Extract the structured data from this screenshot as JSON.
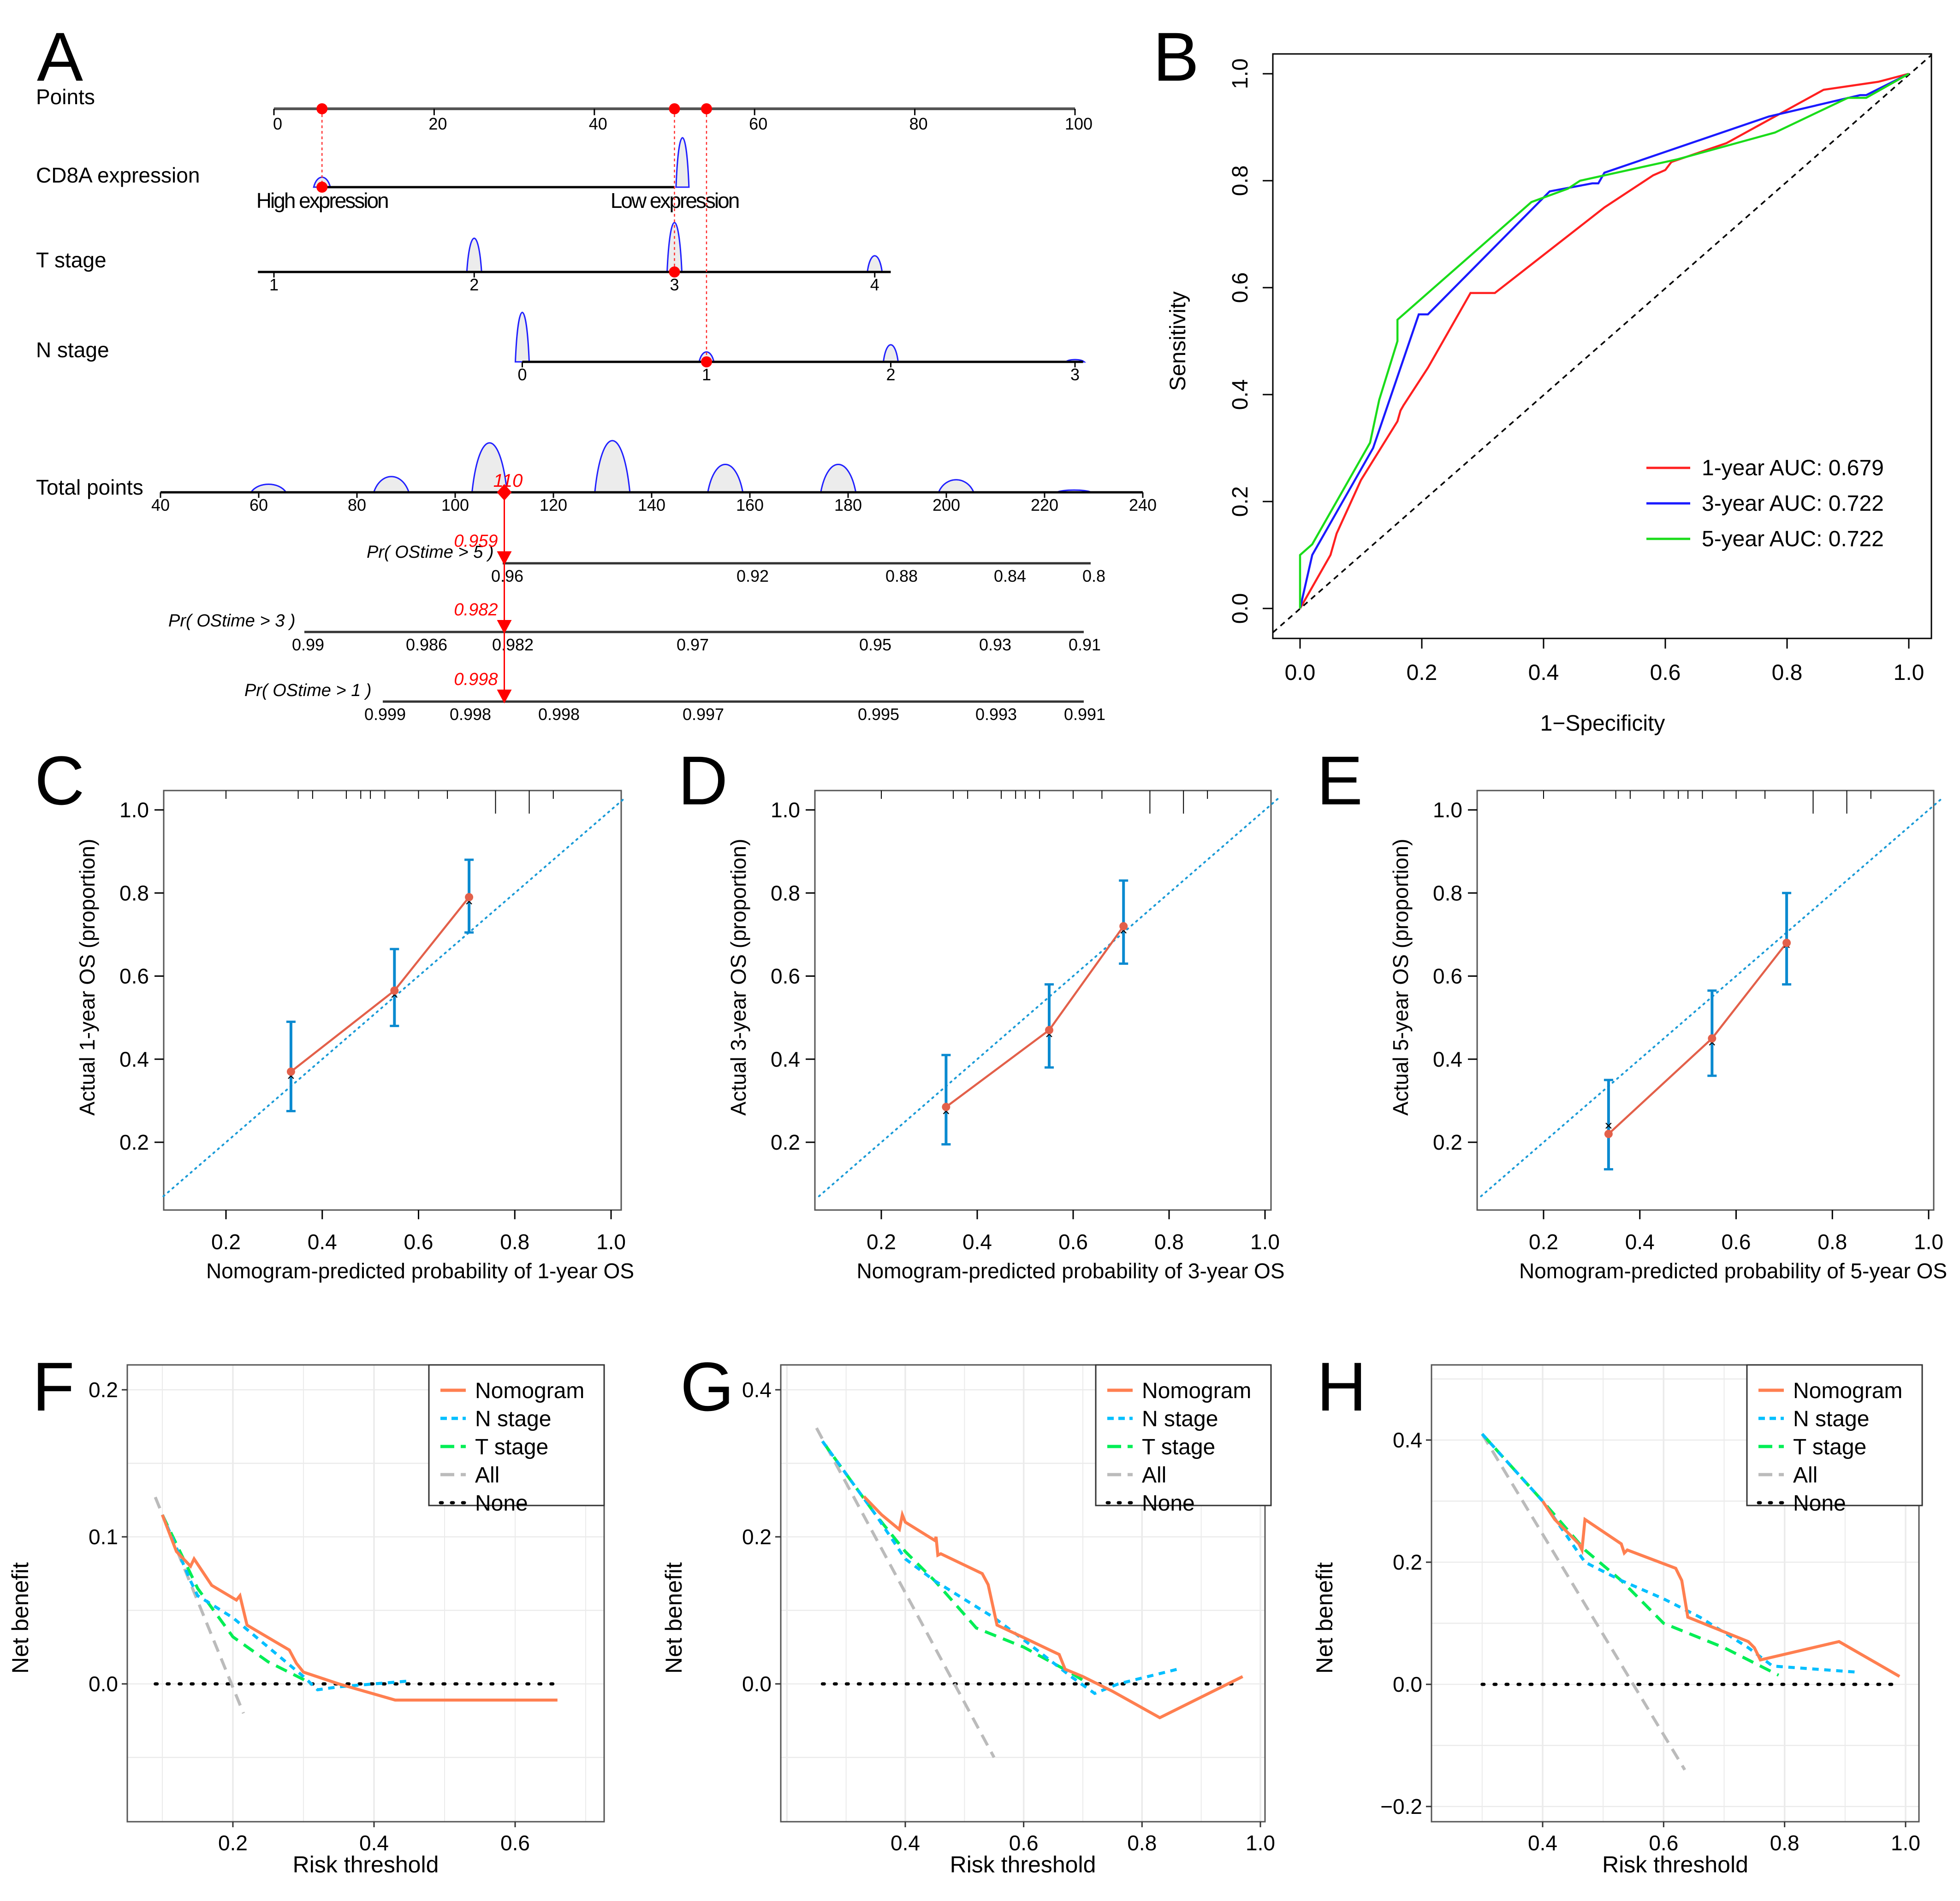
{
  "chart_data": [
    {
      "panel": "A",
      "type": "nomogram",
      "rows": [
        {
          "label": "Points",
          "ticks": [
            "0",
            "20",
            "40",
            "60",
            "80",
            "100"
          ],
          "tick_values": [
            0,
            20,
            40,
            60,
            80,
            100
          ]
        },
        {
          "label": "CD8A expression",
          "levels": [
            "High expression",
            "Low expression"
          ],
          "level_points": [
            6,
            50
          ]
        },
        {
          "label": "T stage",
          "levels": [
            "1",
            "2",
            "3",
            "4"
          ],
          "level_points": [
            0,
            25,
            50,
            75
          ]
        },
        {
          "label": "N stage",
          "levels": [
            "0",
            "1",
            "2",
            "3"
          ],
          "level_points": [
            31,
            54,
            77,
            100
          ]
        },
        {
          "label": "Total points",
          "ticks": [
            "40",
            "60",
            "80",
            "100",
            "120",
            "140",
            "160",
            "180",
            "200",
            "220",
            "240"
          ],
          "tick_values": [
            40,
            60,
            80,
            100,
            120,
            140,
            160,
            180,
            200,
            220,
            240
          ],
          "highlight": "110"
        },
        {
          "label": "Pr( OStime > 5 )",
          "ticks": [
            "0.96",
            "0.92",
            "0.88",
            "0.84",
            "0.8"
          ],
          "highlight": "0.959"
        },
        {
          "label": "Pr( OStime > 3 )",
          "ticks": [
            "0.99",
            "0.986",
            "0.982",
            "0.97",
            "0.95",
            "0.93",
            "0.91"
          ],
          "highlight": "0.982"
        },
        {
          "label": "Pr( OStime > 1 )",
          "ticks": [
            "0.999",
            "0.998",
            "0.998",
            "0.997",
            "0.995",
            "0.993",
            "0.991"
          ],
          "highlight": "0.998"
        }
      ],
      "selected_points": {
        "CD8A expression": 6,
        "T stage": 50,
        "N stage": 54,
        "total": 110
      },
      "total_points_distribution_peaks": [
        62,
        87,
        107,
        132,
        155,
        178,
        202,
        226
      ]
    },
    {
      "panel": "B",
      "type": "line",
      "title": "",
      "xlabel": "1−Specificity",
      "ylabel": "Sensitivity",
      "xlim": [
        0,
        1
      ],
      "ylim": [
        0,
        1
      ],
      "xticks": [
        "0.0",
        "0.2",
        "0.4",
        "0.6",
        "0.8",
        "1.0"
      ],
      "yticks": [
        "0.0",
        "0.2",
        "0.4",
        "0.6",
        "0.8",
        "1.0"
      ],
      "legend_position": "bottom-right",
      "series": [
        {
          "name": "1-year AUC: 0.679",
          "color": "#ff2020",
          "x": [
            0,
            0.05,
            0.06,
            0.1,
            0.16,
            0.165,
            0.17,
            0.21,
            0.28,
            0.32,
            0.5,
            0.58,
            0.6,
            0.61,
            0.7,
            0.86,
            0.95,
            1
          ],
          "y": [
            0,
            0.1,
            0.14,
            0.24,
            0.35,
            0.37,
            0.38,
            0.45,
            0.59,
            0.59,
            0.75,
            0.81,
            0.82,
            0.835,
            0.87,
            0.97,
            0.985,
            1
          ]
        },
        {
          "name": "3-year AUC: 0.722",
          "color": "#1a1aff",
          "x": [
            0,
            0.02,
            0.12,
            0.195,
            0.21,
            0.41,
            0.48,
            0.49,
            0.5,
            0.77,
            0.92,
            0.93,
            1
          ],
          "y": [
            0,
            0.1,
            0.3,
            0.55,
            0.55,
            0.78,
            0.795,
            0.795,
            0.815,
            0.92,
            0.96,
            0.96,
            1
          ],
          "legend": "3-year AUC: 0.722"
        },
        {
          "name": "5-year AUC: 0.722",
          "color": "#1adc1a",
          "x": [
            0,
            0,
            0.02,
            0.115,
            0.13,
            0.16,
            0.16,
            0.38,
            0.44,
            0.46,
            0.62,
            0.78,
            0.9,
            0.93,
            1
          ],
          "y": [
            0,
            0.1,
            0.12,
            0.31,
            0.39,
            0.5,
            0.54,
            0.76,
            0.785,
            0.8,
            0.84,
            0.89,
            0.955,
            0.955,
            1
          ]
        }
      ],
      "reference_line": "diagonal dashed"
    },
    {
      "panel": "C",
      "type": "scatter",
      "xlabel": "Nomogram-predicted probability of 1-year OS",
      "ylabel": "Actual 1-year OS (proportion)",
      "xticks": [
        "0.2",
        "0.4",
        "0.6",
        "0.8",
        "1.0"
      ],
      "yticks": [
        "0.2",
        "0.4",
        "0.6",
        "0.8",
        "1.0"
      ],
      "xlim": [
        0.07,
        1.03
      ],
      "ylim": [
        0.07,
        1.03
      ],
      "points": [
        {
          "x": 0.335,
          "y": 0.37,
          "ci": [
            0.275,
            0.49
          ]
        },
        {
          "x": 0.55,
          "y": 0.565,
          "ci": [
            0.48,
            0.665
          ]
        },
        {
          "x": 0.705,
          "y": 0.79,
          "ci": [
            0.705,
            0.88
          ]
        }
      ],
      "rug_top": [
        0.2,
        0.35,
        0.38,
        0.45,
        0.48,
        0.5,
        0.53,
        0.6,
        0.66,
        0.76,
        0.83,
        0.88
      ]
    },
    {
      "panel": "D",
      "type": "scatter",
      "xlabel": "Nomogram-predicted probability of 3-year OS",
      "ylabel": "Actual 3-year OS (proportion)",
      "xticks": [
        "0.2",
        "0.4",
        "0.6",
        "0.8",
        "1.0"
      ],
      "yticks": [
        "0.2",
        "0.4",
        "0.6",
        "0.8",
        "1.0"
      ],
      "xlim": [
        0.07,
        1.03
      ],
      "ylim": [
        0.07,
        1.03
      ],
      "points": [
        {
          "x": 0.335,
          "y": 0.285,
          "ci": [
            0.195,
            0.41
          ]
        },
        {
          "x": 0.55,
          "y": 0.47,
          "ci": [
            0.38,
            0.58
          ]
        },
        {
          "x": 0.705,
          "y": 0.72,
          "ci": [
            0.63,
            0.83
          ]
        }
      ],
      "rug_top": [
        0.2,
        0.35,
        0.38,
        0.45,
        0.48,
        0.5,
        0.53,
        0.6,
        0.66,
        0.76,
        0.83,
        0.88
      ]
    },
    {
      "panel": "E",
      "type": "scatter",
      "xlabel": "Nomogram-predicted probability of 5-year OS",
      "ylabel": "Actual 5-year OS (proportion)",
      "xticks": [
        "0.2",
        "0.4",
        "0.6",
        "0.8",
        "1.0"
      ],
      "yticks": [
        "0.2",
        "0.4",
        "0.6",
        "0.8",
        "1.0"
      ],
      "xlim": [
        0.07,
        1.03
      ],
      "ylim": [
        0.07,
        1.03
      ],
      "points": [
        {
          "x": 0.335,
          "y": 0.22,
          "ci": [
            0.135,
            0.35
          ],
          "x_marker_y": 0.24
        },
        {
          "x": 0.55,
          "y": 0.45,
          "ci": [
            0.36,
            0.565
          ],
          "x_marker_y": 0.44
        },
        {
          "x": 0.705,
          "y": 0.68,
          "ci": [
            0.58,
            0.8
          ],
          "x_marker_y": 0.675
        }
      ],
      "rug_top": [
        0.2,
        0.35,
        0.38,
        0.45,
        0.48,
        0.5,
        0.53,
        0.6,
        0.66,
        0.76,
        0.83,
        0.88
      ]
    },
    {
      "panel": "F",
      "type": "line",
      "xlabel": "Risk threshold",
      "ylabel": "Net benefit",
      "xticks": [
        "0.2",
        "0.4",
        "0.6"
      ],
      "xtick_values": [
        0.2,
        0.4,
        0.6
      ],
      "yticks": [
        "0.0",
        "0.1",
        "0.2"
      ],
      "ytick_values": [
        0,
        0.1,
        0.2
      ],
      "xlim": [
        0.053,
        0.675
      ],
      "ylim": [
        -0.09,
        0.213
      ],
      "legend_position": "top-right",
      "series": [
        {
          "name": "Nomogram",
          "color": "#ff7f50",
          "dash": "solid",
          "x": [
            0.1,
            0.12,
            0.14,
            0.145,
            0.17,
            0.205,
            0.21,
            0.215,
            0.22,
            0.28,
            0.29,
            0.3,
            0.35,
            0.43,
            0.66
          ],
          "y": [
            0.115,
            0.09,
            0.08,
            0.085,
            0.067,
            0.057,
            0.06,
            0.05,
            0.04,
            0.023,
            0.014,
            0.008,
            0,
            -0.011,
            -0.011
          ]
        },
        {
          "name": "N stage",
          "color": "#00bfff",
          "dash": "short",
          "x": [
            0.1,
            0.14,
            0.15,
            0.2,
            0.25,
            0.3,
            0.32,
            0.35,
            0.4,
            0.45
          ],
          "y": [
            0.115,
            0.07,
            0.06,
            0.045,
            0.025,
            0.005,
            -0.004,
            -0.002,
            0,
            0.002
          ]
        },
        {
          "name": "T stage",
          "color": "#00ee55",
          "dash": "long",
          "x": [
            0.1,
            0.13,
            0.15,
            0.2,
            0.25,
            0.3,
            0.31
          ],
          "y": [
            0.115,
            0.085,
            0.065,
            0.032,
            0.015,
            0.003,
            0
          ]
        },
        {
          "name": "All",
          "color": "#bbbbbb",
          "dash": "long",
          "x": [
            0.09,
            0.215
          ],
          "y": [
            0.127,
            -0.02
          ]
        },
        {
          "name": "None",
          "color": "#000000",
          "dash": "dot",
          "x": [
            0.09,
            0.66
          ],
          "y": [
            0,
            0
          ]
        }
      ]
    },
    {
      "panel": "G",
      "type": "line",
      "xlabel": "Risk threshold",
      "ylabel": "Net benefit",
      "xticks": [
        "0.4",
        "0.6",
        "0.8",
        "1.0"
      ],
      "xtick_values": [
        0.4,
        0.6,
        0.8,
        1.0
      ],
      "yticks": [
        "0.0",
        "0.2",
        "0.4"
      ],
      "ytick_values": [
        0,
        0.2,
        0.4
      ],
      "xlim": [
        0.205,
        1.012
      ],
      "ylim": [
        -0.18,
        0.427
      ],
      "legend_position": "top-right",
      "series": [
        {
          "name": "Nomogram",
          "color": "#ff7f50",
          "dash": "solid",
          "x": [
            0.33,
            0.36,
            0.39,
            0.395,
            0.4,
            0.45,
            0.452,
            0.455,
            0.46,
            0.53,
            0.54,
            0.555,
            0.6,
            0.66,
            0.67,
            0.7,
            0.75,
            0.83,
            0.97
          ],
          "y": [
            0.255,
            0.23,
            0.21,
            0.23,
            0.22,
            0.195,
            0.2,
            0.175,
            0.177,
            0.15,
            0.135,
            0.08,
            0.063,
            0.04,
            0.02,
            0.01,
            -0.01,
            -0.046,
            0.01
          ]
        },
        {
          "name": "N stage",
          "color": "#00bfff",
          "dash": "short",
          "x": [
            0.26,
            0.35,
            0.4,
            0.45,
            0.55,
            0.6,
            0.68,
            0.72,
            0.76,
            0.86
          ],
          "y": [
            0.33,
            0.23,
            0.17,
            0.14,
            0.09,
            0.06,
            0.01,
            -0.013,
            0,
            0.02
          ]
        },
        {
          "name": "T stage",
          "color": "#00ee55",
          "dash": "long",
          "x": [
            0.26,
            0.35,
            0.4,
            0.45,
            0.52,
            0.6,
            0.68,
            0.71
          ],
          "y": [
            0.33,
            0.23,
            0.18,
            0.14,
            0.076,
            0.05,
            0.015,
            0
          ]
        },
        {
          "name": "All",
          "color": "#bbbbbb",
          "dash": "long",
          "x": [
            0.25,
            0.55
          ],
          "y": [
            0.348,
            -0.1
          ]
        },
        {
          "name": "None",
          "color": "#000000",
          "dash": "dot",
          "x": [
            0.26,
            0.96
          ],
          "y": [
            0,
            0
          ]
        }
      ]
    },
    {
      "panel": "H",
      "type": "line",
      "xlabel": "Risk threshold",
      "ylabel": "Net benefit",
      "xticks": [
        "0.4",
        "0.6",
        "0.8",
        "1.0"
      ],
      "xtick_values": [
        0.4,
        0.6,
        0.8,
        1.0
      ],
      "yticks": [
        "−0.2",
        "0.0",
        "0.2",
        "0.4"
      ],
      "ytick_values": [
        -0.2,
        0,
        0.2,
        0.4
      ],
      "xlim": [
        0.263,
        1.025
      ],
      "ylim": [
        -0.224,
        0.534
      ],
      "legend_position": "top-right",
      "series": [
        {
          "name": "Nomogram",
          "color": "#ff7f50",
          "dash": "solid",
          "x": [
            0.4,
            0.42,
            0.46,
            0.465,
            0.47,
            0.53,
            0.535,
            0.54,
            0.62,
            0.63,
            0.64,
            0.74,
            0.75,
            0.76,
            0.89,
            0.99
          ],
          "y": [
            0.3,
            0.27,
            0.23,
            0.22,
            0.27,
            0.23,
            0.215,
            0.22,
            0.19,
            0.17,
            0.11,
            0.07,
            0.06,
            0.04,
            0.07,
            0.013
          ]
        },
        {
          "name": "N stage",
          "color": "#00bfff",
          "dash": "short",
          "x": [
            0.3,
            0.4,
            0.47,
            0.53,
            0.6,
            0.66,
            0.74,
            0.78,
            0.92
          ],
          "y": [
            0.41,
            0.3,
            0.2,
            0.17,
            0.14,
            0.11,
            0.06,
            0.03,
            0.02
          ]
        },
        {
          "name": "T stage",
          "color": "#00ee55",
          "dash": "long",
          "x": [
            0.3,
            0.4,
            0.47,
            0.53,
            0.6,
            0.7,
            0.76,
            0.79
          ],
          "y": [
            0.41,
            0.3,
            0.22,
            0.17,
            0.1,
            0.06,
            0.03,
            0.015
          ]
        },
        {
          "name": "All",
          "color": "#bbbbbb",
          "dash": "long",
          "x": [
            0.3,
            0.635
          ],
          "y": [
            0.41,
            -0.14
          ]
        },
        {
          "name": "None",
          "color": "#000000",
          "dash": "dot",
          "x": [
            0.3,
            0.99
          ],
          "y": [
            0,
            0
          ]
        }
      ]
    }
  ],
  "panel_labels": [
    "A",
    "B",
    "C",
    "D",
    "E",
    "F",
    "G",
    "H"
  ],
  "legend_labels": {
    "nomogram": "Nomogram",
    "n_stage": "N stage",
    "t_stage": "T stage",
    "all": "All",
    "none": "None"
  }
}
